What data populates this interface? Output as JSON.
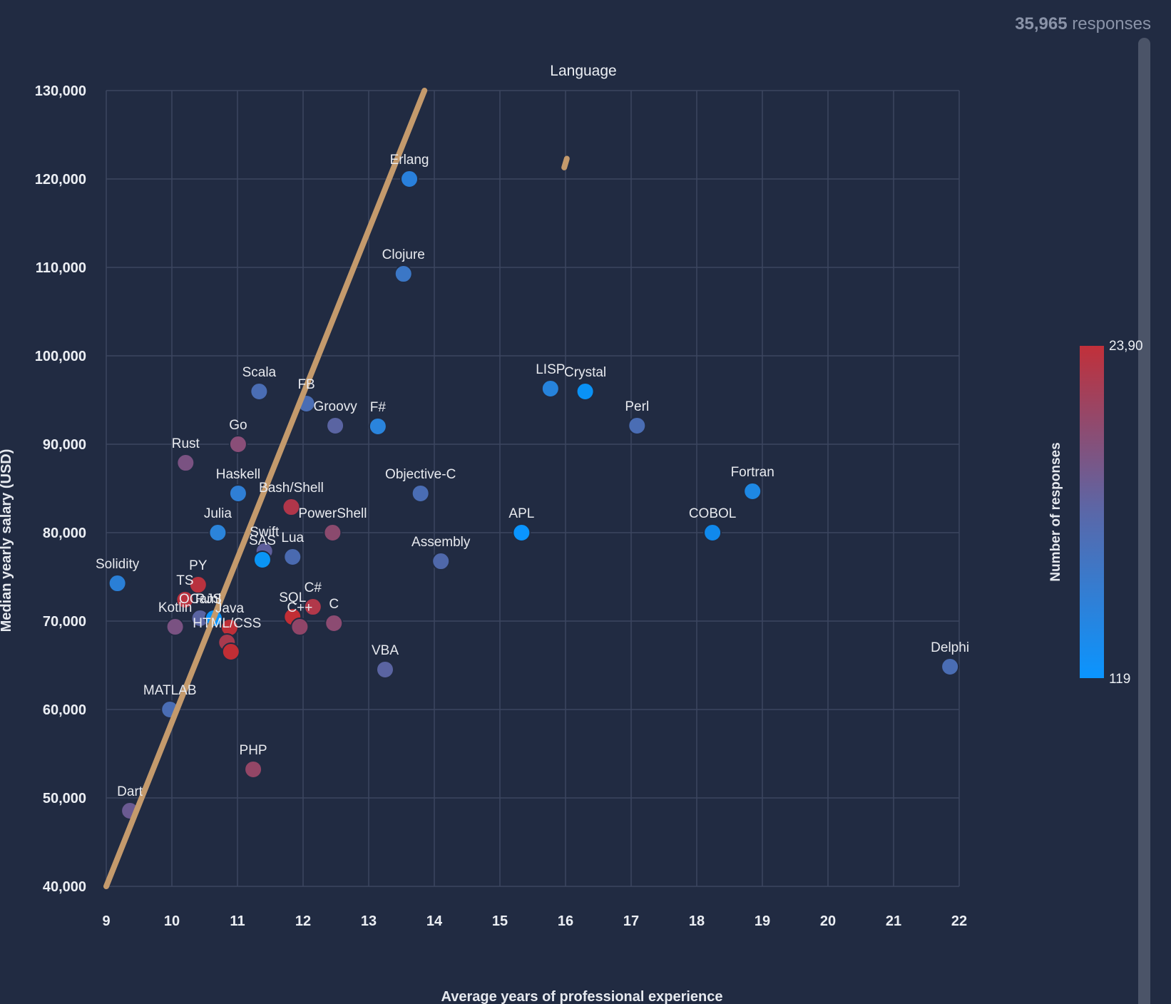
{
  "header": {
    "response_count": "35,965",
    "response_suffix": "responses"
  },
  "chart_data": {
    "type": "scatter",
    "title": "Language",
    "xlabel": "Average years of professional experience",
    "ylabel": "Median yearly salary (USD)",
    "xlim": [
      9,
      22
    ],
    "ylim": [
      40000,
      130000
    ],
    "x_ticks": [
      "9",
      "10",
      "11",
      "12",
      "13",
      "14",
      "15",
      "16",
      "17",
      "18",
      "19",
      "20",
      "21",
      "22"
    ],
    "y_ticks": [
      "40,000",
      "50,000",
      "60,000",
      "70,000",
      "80,000",
      "90,000",
      "100,000",
      "110,000",
      "120,000",
      "130,000"
    ],
    "grid": true,
    "colorbar": {
      "title": "Number of responses",
      "min_label": "119",
      "max_label": "23,90",
      "min_color": "#0a95ff",
      "mid_color": "#5a67a8",
      "max_color": "#c1303a"
    },
    "trendline": {
      "color": "#c49a6c",
      "points": [
        [
          9,
          40000
        ],
        [
          13.85,
          130000
        ]
      ],
      "fragment": [
        [
          15.98,
          121300
        ],
        [
          16.02,
          122300
        ]
      ]
    },
    "points": [
      {
        "label": "Erlang",
        "x": 13.62,
        "y": 120000,
        "color": "#2980dc"
      },
      {
        "label": "Clojure",
        "x": 13.53,
        "y": 109270,
        "color": "#3b77c6"
      },
      {
        "label": "Scala",
        "x": 11.33,
        "y": 95970,
        "color": "#4a6db4"
      },
      {
        "label": "FB",
        "x": 12.05,
        "y": 94600,
        "color": "#4a6db4"
      },
      {
        "label": "Groovy",
        "x": 12.49,
        "y": 92100,
        "color": "#5a64a2"
      },
      {
        "label": "F#",
        "x": 13.14,
        "y": 92020,
        "color": "#2a84dc"
      },
      {
        "label": "Go",
        "x": 11.01,
        "y": 90000,
        "color": "#8a4e78"
      },
      {
        "label": "Rust",
        "x": 10.21,
        "y": 87900,
        "color": "#7a5282"
      },
      {
        "label": "Haskell",
        "x": 11.01,
        "y": 84440,
        "color": "#2f7fd6"
      },
      {
        "label": "Bash/Shell",
        "x": 11.82,
        "y": 82900,
        "color": "#b0364a"
      },
      {
        "label": "Julia",
        "x": 10.7,
        "y": 80000,
        "color": "#2b84da"
      },
      {
        "label": "PowerShell",
        "x": 12.45,
        "y": 80000,
        "color": "#8b4a6e"
      },
      {
        "label": "Swift",
        "x": 11.41,
        "y": 77900,
        "color": "#5e5f9c"
      },
      {
        "label": "SAS",
        "x": 11.38,
        "y": 76940,
        "color": "#0a95f5"
      },
      {
        "label": "Lua",
        "x": 11.84,
        "y": 77260,
        "color": "#4a6ab0"
      },
      {
        "label": "Solidity",
        "x": 9.17,
        "y": 74270,
        "color": "#2a7fd6"
      },
      {
        "label": "PY",
        "x": 10.4,
        "y": 74110,
        "color": "#b9323e"
      },
      {
        "label": "TS",
        "x": 10.2,
        "y": 72420,
        "color": "#b9323e"
      },
      {
        "label": "R",
        "x": 10.43,
        "y": 70320,
        "color": "#5a64a2"
      },
      {
        "label": "OCaml",
        "x": 10.43,
        "y": 70320,
        "color": "#5a64a2"
      },
      {
        "label": "JS",
        "x": 10.64,
        "y": 70320,
        "color": "#0a95ff"
      },
      {
        "label": "Kotlin",
        "x": 10.05,
        "y": 69350,
        "color": "#7a5282"
      },
      {
        "label": "Java",
        "x": 10.88,
        "y": 69270,
        "color": "#be2f38"
      },
      {
        "label": "HTML/CSS",
        "x": 10.84,
        "y": 67580,
        "color": "#a83a4e"
      },
      {
        "label": "",
        "x": 10.9,
        "y": 66530,
        "color": "#c22e35"
      },
      {
        "label": "SQL",
        "x": 11.84,
        "y": 70480,
        "color": "#c22e35"
      },
      {
        "label": "C#",
        "x": 12.15,
        "y": 71610,
        "color": "#b1384a"
      },
      {
        "label": "C++",
        "x": 11.95,
        "y": 69350,
        "color": "#8f4568"
      },
      {
        "label": "C",
        "x": 12.47,
        "y": 69760,
        "color": "#8c4b72"
      },
      {
        "label": "Objective-C",
        "x": 13.79,
        "y": 84440,
        "color": "#4a6db4"
      },
      {
        "label": "Assembly",
        "x": 14.1,
        "y": 76770,
        "color": "#4f68aa"
      },
      {
        "label": "VBA",
        "x": 13.25,
        "y": 64520,
        "color": "#5a64a2"
      },
      {
        "label": "APL",
        "x": 15.33,
        "y": 80000,
        "color": "#0a95ff"
      },
      {
        "label": "LISP",
        "x": 15.77,
        "y": 96290,
        "color": "#2683dc"
      },
      {
        "label": "Crystal",
        "x": 16.3,
        "y": 95970,
        "color": "#0a92f6"
      },
      {
        "label": "Perl",
        "x": 17.09,
        "y": 92100,
        "color": "#4a6db4"
      },
      {
        "label": "Fortran",
        "x": 18.85,
        "y": 84680,
        "color": "#1e88e4"
      },
      {
        "label": "COBOL",
        "x": 18.24,
        "y": 80000,
        "color": "#1089ec"
      },
      {
        "label": "Delphi",
        "x": 21.86,
        "y": 64840,
        "color": "#4a6db4"
      },
      {
        "label": "MATLAB",
        "x": 9.97,
        "y": 60000,
        "color": "#4a6db4"
      },
      {
        "label": "PHP",
        "x": 11.24,
        "y": 53230,
        "color": "#934666"
      },
      {
        "label": "Dart",
        "x": 9.36,
        "y": 48550,
        "color": "#6a5a92"
      }
    ]
  }
}
